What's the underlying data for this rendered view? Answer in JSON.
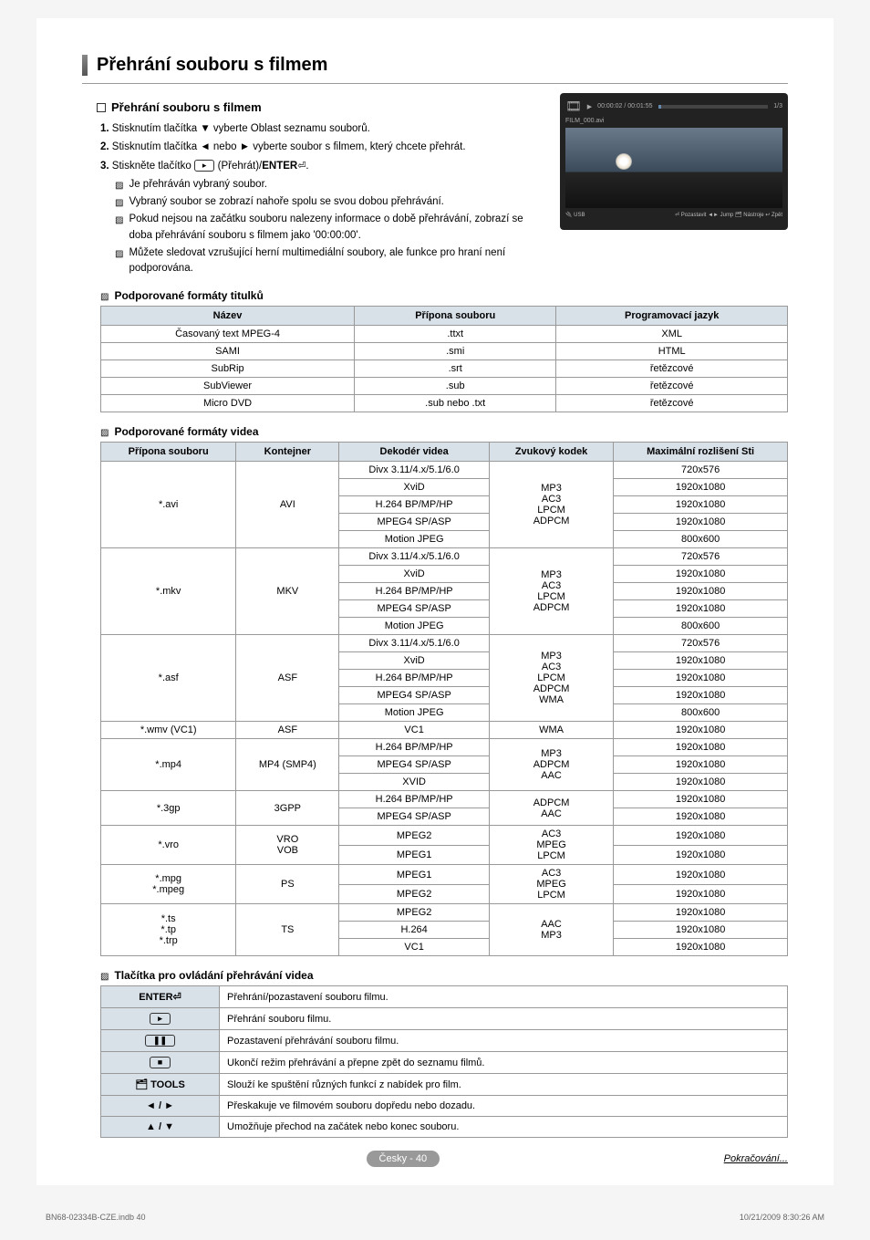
{
  "page": {
    "main_title": "Přehrání souboru s filmem",
    "section_title": "Přehrání souboru s filmem",
    "footer_badge": "Česky - 40",
    "continue_text": "Pokračování...",
    "meta_left": "BN68-02334B-CZE.indb   40",
    "meta_right": "10/21/2009   8:30:26 AM"
  },
  "steps": [
    {
      "num": "1.",
      "text_pre": "Stisknutím tlačítka ",
      "arrow": "▼",
      "text_post": " vyberte Oblast seznamu souborů."
    },
    {
      "num": "2.",
      "text_pre": "Stisknutím tlačítka ",
      "arrow": "◄",
      "text_mid": " nebo ",
      "arrow2": "►",
      "text_post": " vyberte soubor s filmem, který chcete přehrát."
    },
    {
      "num": "3.",
      "text_pre": "Stiskněte tlačítko ",
      "btn_icon": "▸",
      "btn_label": " (Přehrát)/",
      "enter_label": "ENTER",
      "enter_icon": "⏎",
      "text_post": "."
    }
  ],
  "notes_after_steps": [
    "Je přehráván vybraný soubor.",
    "Vybraný soubor se zobrazí nahoře spolu se svou dobou přehrávání.",
    "Pokud nejsou na začátku souboru nalezeny informace o době přehrávání, zobrazí se doba přehrávání souboru s filmem jako '00:00:00'.",
    "Můžete sledovat vzrušující herní multimediální soubory, ale funkce pro hraní není podporována."
  ],
  "subtitle_section_title": "Podporované formáty titulků",
  "subtitle_table": {
    "headers": [
      "Název",
      "Přípona souboru",
      "Programovací jazyk"
    ],
    "rows": [
      [
        "Časovaný text MPEG-4",
        ".ttxt",
        "XML"
      ],
      [
        "SAMI",
        ".smi",
        "HTML"
      ],
      [
        "SubRip",
        ".srt",
        "řetězcové"
      ],
      [
        "SubViewer",
        ".sub",
        "řetězcové"
      ],
      [
        "Micro DVD",
        ".sub nebo  .txt",
        "řetězcové"
      ]
    ]
  },
  "video_section_title": "Podporované formáty videa",
  "video_table": {
    "headers": [
      "Přípona souboru",
      "Kontejner",
      "Dekodér videa",
      "Zvukový kodek",
      "Maximální rozlišení Sti"
    ]
  },
  "control_section_title": "Tlačítka pro ovládání přehrávání videa",
  "control_table": {
    "rows": [
      {
        "btn": "ENTER⏎",
        "desc": "Přehrání/pozastavení souboru filmu."
      },
      {
        "btn": "▸",
        "boxed": true,
        "desc": "Přehrání souboru filmu."
      },
      {
        "btn": "❚❚",
        "boxed": true,
        "stop_like": "pause",
        "desc": "Pozastavení přehrávání souboru filmu."
      },
      {
        "btn": "■",
        "boxed": true,
        "desc": "Ukončí režim přehrávání a přepne zpět do seznamu filmů."
      },
      {
        "btn": "🗂 TOOLS",
        "desc": "Slouží ke spuštění různých funkcí z nabídek pro film."
      },
      {
        "btn": "◄ / ►",
        "desc": "Přeskakuje ve filmovém souboru dopředu nebo dozadu."
      },
      {
        "btn": "▲ / ▼",
        "desc": "Umožňuje přechod na začátek nebo konec souboru."
      }
    ]
  },
  "thumb": {
    "time": "00:00:02 / 00:01:55",
    "count": "1/3",
    "filename": "FILM_000.avi",
    "usb_label": "USB",
    "controls": "⏎ Pozastavit  ◄► Jump  🗂 Nástroje  ↩ Zpět"
  }
}
